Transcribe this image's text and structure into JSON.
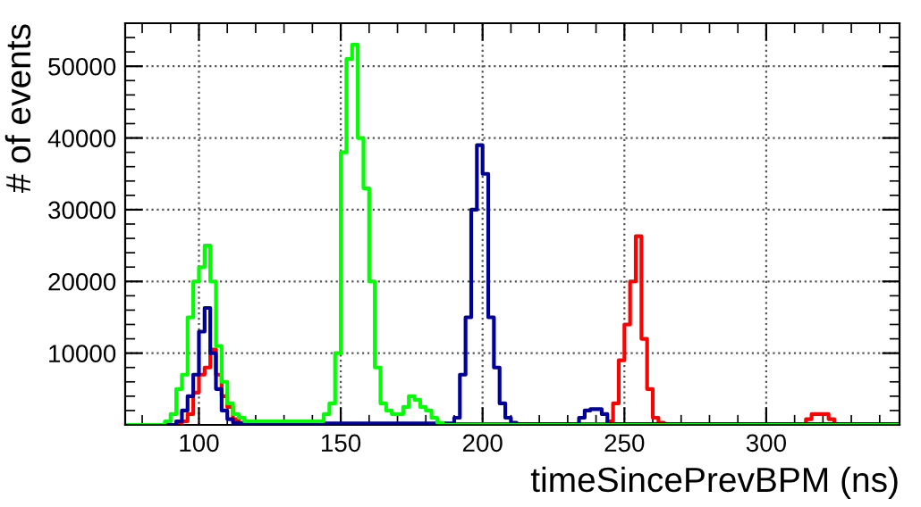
{
  "chart_data": {
    "type": "step",
    "xlabel": "timeSincePrevBPM (ns)",
    "ylabel": "# of events",
    "xlim": [
      74,
      347
    ],
    "ylim": [
      0,
      56000
    ],
    "xticks": [
      100,
      150,
      200,
      250,
      300
    ],
    "yticks": [
      10000,
      20000,
      30000,
      40000,
      50000
    ],
    "grid": true,
    "line_style": "solid",
    "series": [
      {
        "color": "#ff0000",
        "x": [
          74,
          94,
          96,
          98,
          100,
          102,
          104,
          106,
          108,
          110,
          112,
          114,
          116,
          244,
          246,
          248,
          250,
          252,
          254,
          256,
          258,
          260,
          262,
          264,
          314,
          316,
          318,
          320,
          322,
          324
        ],
        "values": [
          0,
          500,
          1500,
          4500,
          7000,
          8000,
          10500,
          7000,
          4000,
          2500,
          800,
          300,
          100,
          500,
          3000,
          9000,
          14000,
          20000,
          26300,
          12000,
          5000,
          1000,
          300,
          100,
          800,
          1500,
          1500,
          1500,
          800,
          100
        ]
      },
      {
        "color": "#000099",
        "x": [
          74,
          92,
          94,
          96,
          98,
          100,
          102,
          104,
          106,
          108,
          110,
          112,
          114,
          190,
          192,
          194,
          196,
          198,
          200,
          202,
          204,
          206,
          208,
          210,
          212,
          234,
          236,
          238,
          240,
          242,
          244,
          347
        ],
        "values": [
          0,
          500,
          2000,
          4000,
          7000,
          13000,
          16300,
          10000,
          5000,
          2000,
          800,
          300,
          200,
          1000,
          7000,
          15000,
          30000,
          39000,
          35000,
          15000,
          8000,
          3000,
          1000,
          300,
          100,
          1000,
          2000,
          2200,
          2200,
          1500,
          100,
          0
        ]
      },
      {
        "color": "#00ff00",
        "x": [
          74,
          88,
          90,
          92,
          94,
          96,
          98,
          100,
          102,
          104,
          106,
          108,
          110,
          112,
          114,
          116,
          144,
          146,
          148,
          150,
          152,
          154,
          156,
          158,
          160,
          162,
          164,
          166,
          168,
          170,
          172,
          174,
          176,
          178,
          180,
          182,
          184,
          186,
          347
        ],
        "values": [
          0,
          500,
          1500,
          5000,
          7000,
          15000,
          20000,
          22000,
          25000,
          20000,
          11000,
          6000,
          3000,
          1500,
          1000,
          500,
          1500,
          3000,
          10000,
          38000,
          51000,
          53000,
          40000,
          33000,
          20000,
          8000,
          3000,
          2000,
          1500,
          1500,
          2500,
          4000,
          3500,
          2500,
          2000,
          1000,
          300,
          0,
          0
        ]
      }
    ]
  }
}
